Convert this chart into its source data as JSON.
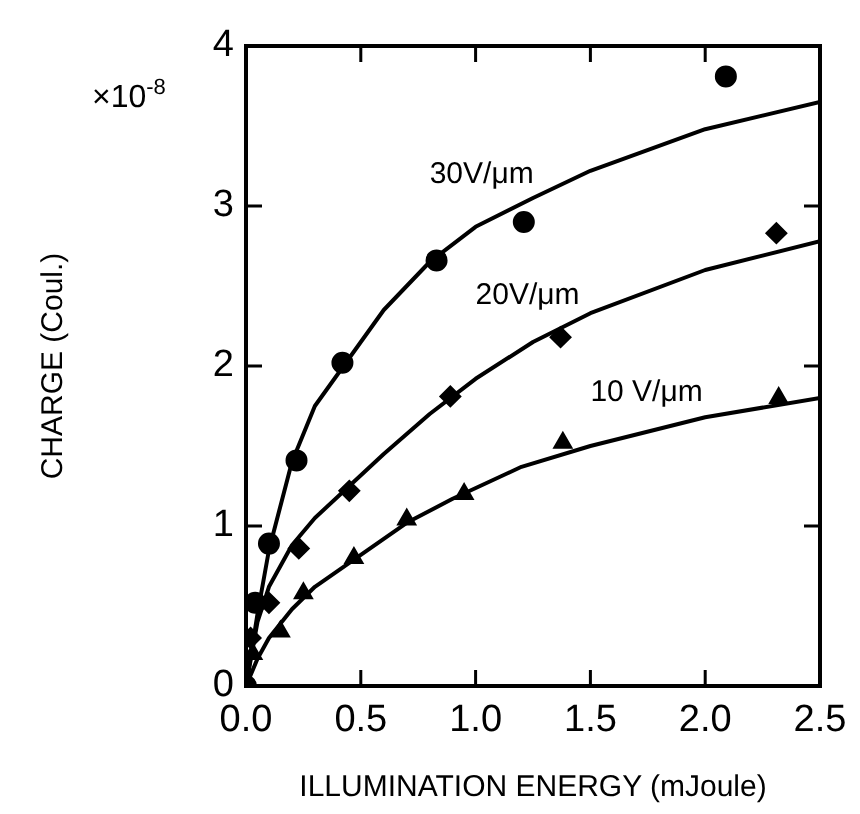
{
  "chart_data": {
    "type": "scatter",
    "xlabel": "ILLUMINATION ENERGY (mJoule)",
    "ylabel": "CHARGE (Coul.)",
    "xlim": [
      0,
      2.5
    ],
    "xticks": [
      {
        "value": 0,
        "label": "0.0"
      },
      {
        "value": 0.5,
        "label": "0.5"
      },
      {
        "value": 1,
        "label": "1.0"
      },
      {
        "value": 1.5,
        "label": "1.5"
      },
      {
        "value": 2,
        "label": "2.0"
      },
      {
        "value": 2.5,
        "label": "2.5"
      }
    ],
    "ylim": [
      0,
      4
    ],
    "yticks": [
      0,
      1,
      2,
      3,
      4
    ],
    "grid": false,
    "legend": false,
    "annotations": [
      "×10$^{-8}$"
    ],
    "series": [
      {
        "marker": "circle",
        "color": "#000000",
        "x": [
          0,
          0.04,
          0.1,
          0.22,
          0.42,
          0.83,
          1.21,
          2.09
        ],
        "values": [
          0,
          0.52,
          0.89,
          1.41,
          2.02,
          2.66,
          2.9,
          3.81
        ]
      },
      {
        "marker": "diamond",
        "color": "#000000",
        "x": [
          0.02,
          0.1,
          0.23,
          0.45,
          0.89,
          1.37,
          2.31
        ],
        "values": [
          0.3,
          0.52,
          0.86,
          1.22,
          1.81,
          2.18,
          2.83
        ]
      },
      {
        "marker": "triangle",
        "color": "#000000",
        "x": [
          0.03,
          0.15,
          0.25,
          0.47,
          0.7,
          0.95,
          1.38,
          2.32
        ],
        "values": [
          0.2,
          0.34,
          0.58,
          0.8,
          1.04,
          1.2,
          1.52,
          1.8
        ]
      },
      {
        "type": "line",
        "name": "30V/μm",
        "color": "#000000",
        "x": [
          0,
          0.05,
          0.1,
          0.2,
          0.3,
          0.45,
          0.6,
          0.8,
          1.0,
          1.25,
          1.5,
          2.0,
          2.5
        ],
        "values": [
          0,
          0.45,
          0.85,
          1.4,
          1.75,
          2.05,
          2.35,
          2.65,
          2.87,
          3.05,
          3.22,
          3.48,
          3.65
        ]
      },
      {
        "type": "line",
        "name": "20V/μm",
        "color": "#000000",
        "x": [
          0,
          0.05,
          0.1,
          0.2,
          0.3,
          0.45,
          0.6,
          0.8,
          1.0,
          1.25,
          1.5,
          2.0,
          2.5
        ],
        "values": [
          0,
          0.4,
          0.62,
          0.88,
          1.05,
          1.25,
          1.45,
          1.7,
          1.92,
          2.15,
          2.33,
          2.6,
          2.78
        ]
      },
      {
        "type": "line",
        "name": "10 V/μm",
        "color": "#000000",
        "x": [
          0,
          0.05,
          0.1,
          0.2,
          0.3,
          0.5,
          0.7,
          0.9,
          1.2,
          1.5,
          2.0,
          2.5
        ],
        "values": [
          0,
          0.17,
          0.3,
          0.48,
          0.62,
          0.82,
          1.02,
          1.17,
          1.37,
          1.5,
          1.68,
          1.8
        ]
      }
    ]
  }
}
